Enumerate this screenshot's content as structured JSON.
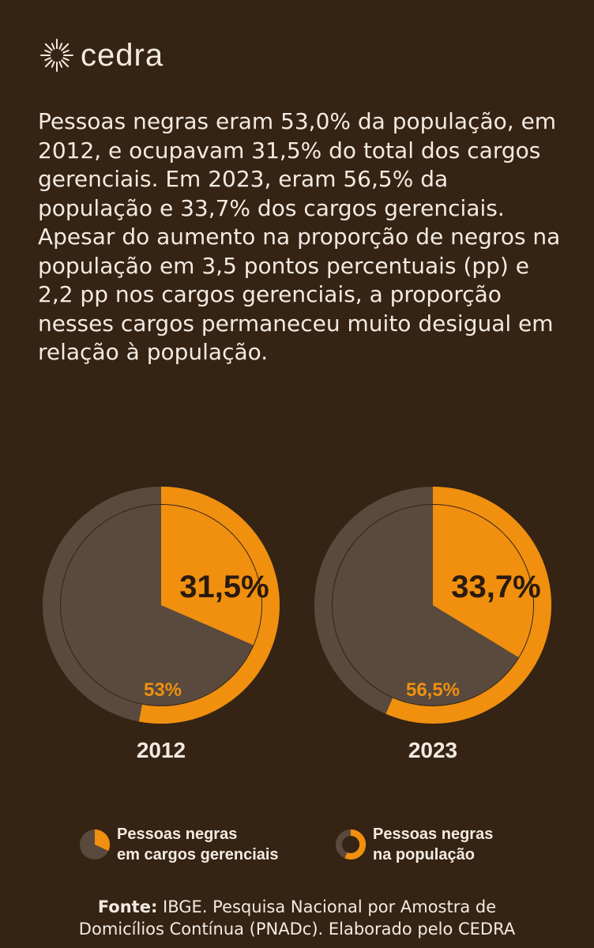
{
  "brand": {
    "name": "cedra"
  },
  "intro": "Pessoas negras eram 53,0% da população, em 2012, e ocupavam 31,5% do total dos cargos gerenciais. Em 2023, eram 56,5% da população e 33,7% dos cargos gerenciais. Apesar do aumento na proporção de negros na população em 3,5 pontos percentuais (pp) e 2,2 pp nos cargos gerenciais, a proporção nesses cargos permaneceu muito desigual em relação à população.",
  "colors": {
    "background": "#352314",
    "accent": "#f0900e",
    "muted": "#5a4a3e",
    "text": "#f3ebe1",
    "dark_text": "#2b1a0e"
  },
  "chart_data": {
    "type": "pie",
    "title": "",
    "series": [
      {
        "name": "Pessoas negras em cargos gerenciais",
        "style": "pie"
      },
      {
        "name": "Pessoas negras na população",
        "style": "ring"
      }
    ],
    "charts": [
      {
        "year": "2012",
        "cargos_pct": 31.5,
        "cargos_label": "31,5%",
        "populacao_pct": 53.0,
        "populacao_label": "53%"
      },
      {
        "year": "2023",
        "cargos_pct": 33.7,
        "cargos_label": "33,7%",
        "populacao_pct": 56.5,
        "populacao_label": "56,5%"
      }
    ]
  },
  "legend": {
    "pie_label_1": "Pessoas negras",
    "pie_label_2": "em cargos gerenciais",
    "ring_label_1": "Pessoas negras",
    "ring_label_2": "na população"
  },
  "source": {
    "prefix": "Fonte:",
    "line1": " IBGE. Pesquisa Nacional por Amostra de",
    "line2": "Domicílios Contínua (PNADc). Elaborado pelo CEDRA"
  }
}
